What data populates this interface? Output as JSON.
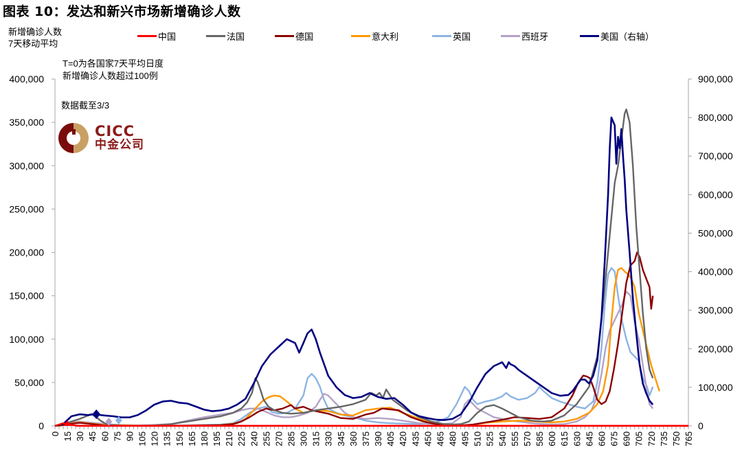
{
  "header": {
    "title": "图表 10：发达和新兴市场新增确诊人数",
    "ylabel_line1": "新增确诊人数",
    "ylabel_line2": "7天移动平均"
  },
  "annotations": {
    "note_line1": "T=0为各国家7天平均日度",
    "note_line2": "新增确诊人数超过100例",
    "cutoff": "数据截至3/3"
  },
  "logo": {
    "en": "CICC",
    "cn": "中金公司"
  },
  "chart_data": {
    "type": "line",
    "title": "图表 10：发达和新兴市场新增确诊人数",
    "ylabel": "新增确诊人数 7天移动平均",
    "xlabel": "",
    "x_range": [
      0,
      765
    ],
    "x_ticks": [
      0,
      15,
      30,
      45,
      60,
      75,
      90,
      105,
      120,
      135,
      150,
      165,
      180,
      195,
      210,
      225,
      240,
      255,
      270,
      285,
      300,
      315,
      330,
      345,
      360,
      375,
      390,
      405,
      420,
      435,
      450,
      465,
      480,
      495,
      510,
      525,
      540,
      555,
      570,
      585,
      600,
      615,
      630,
      645,
      660,
      675,
      690,
      705,
      720,
      735,
      750,
      765
    ],
    "ylim_left": [
      0,
      400000
    ],
    "ylim_right": [
      0,
      900000
    ],
    "y_ticks_left": [
      "0",
      "50,000",
      "100,000",
      "150,000",
      "200,000",
      "250,000",
      "300,000",
      "350,000",
      "400,000"
    ],
    "y_ticks_right": [
      "0",
      "100,000",
      "200,000",
      "300,000",
      "400,000",
      "500,000",
      "600,000",
      "700,000",
      "800,000",
      "900,000"
    ],
    "grid": false,
    "legend_position": "top",
    "series": [
      {
        "name": "中国",
        "color": "#ff0000",
        "axis": "left",
        "x": [
          0,
          5,
          10,
          15,
          20,
          25,
          30,
          40,
          60,
          100,
          200,
          400,
          600,
          765
        ],
        "values": [
          0,
          1500,
          3000,
          2500,
          1000,
          500,
          200,
          100,
          50,
          50,
          50,
          50,
          50,
          50
        ]
      },
      {
        "name": "法国",
        "color": "#666666",
        "axis": "left",
        "x": [
          0,
          10,
          20,
          30,
          40,
          45,
          50,
          55,
          60,
          65,
          80,
          100,
          120,
          140,
          160,
          180,
          200,
          215,
          225,
          232,
          238,
          242,
          245,
          248,
          252,
          258,
          265,
          275,
          285,
          300,
          315,
          330,
          345,
          360,
          375,
          382,
          388,
          392,
          396,
          400,
          404,
          408,
          415,
          425,
          440,
          455,
          470,
          480,
          490,
          500,
          510,
          520,
          530,
          540,
          550,
          560,
          575,
          590,
          600,
          615,
          630,
          645,
          655,
          662,
          668,
          672,
          676,
          680,
          684,
          688,
          690,
          694,
          698,
          702,
          706,
          710,
          714,
          718,
          722
        ],
        "values": [
          0,
          2000,
          5000,
          8000,
          12000,
          13000,
          10000,
          6000,
          3000,
          1000,
          300,
          200,
          500,
          2000,
          5000,
          8000,
          11000,
          15000,
          20000,
          27000,
          38000,
          55000,
          50000,
          42000,
          30000,
          22000,
          18000,
          15000,
          14000,
          15000,
          18000,
          20000,
          22000,
          25000,
          30000,
          38000,
          35000,
          38000,
          32000,
          42000,
          36000,
          30000,
          25000,
          18000,
          10000,
          5000,
          2000,
          1500,
          2000,
          5000,
          15000,
          22000,
          24000,
          20000,
          15000,
          10000,
          6000,
          5000,
          6000,
          12000,
          25000,
          45000,
          80000,
          140000,
          200000,
          240000,
          280000,
          300000,
          330000,
          360000,
          365000,
          350000,
          300000,
          230000,
          180000,
          130000,
          90000,
          65000,
          55000
        ]
      },
      {
        "name": "德国",
        "color": "#8b0000",
        "axis": "left",
        "x": [
          0,
          10,
          20,
          30,
          40,
          50,
          60,
          80,
          120,
          160,
          200,
          215,
          225,
          235,
          245,
          255,
          265,
          275,
          280,
          285,
          290,
          300,
          310,
          320,
          330,
          345,
          360,
          375,
          385,
          395,
          405,
          415,
          430,
          445,
          460,
          475,
          490,
          505,
          520,
          540,
          555,
          570,
          585,
          600,
          615,
          625,
          632,
          638,
          642,
          646,
          650,
          655,
          660,
          665,
          670,
          675,
          680,
          685,
          690,
          695,
          700,
          703,
          706,
          710,
          714,
          718,
          720,
          722
        ],
        "values": [
          0,
          1000,
          2500,
          3500,
          2500,
          1500,
          500,
          200,
          100,
          200,
          800,
          2000,
          5000,
          10000,
          16000,
          20000,
          18000,
          20000,
          22000,
          24000,
          20000,
          22000,
          18000,
          16000,
          14000,
          9000,
          8000,
          13000,
          15000,
          20000,
          19000,
          18000,
          10000,
          5000,
          2000,
          800,
          500,
          1500,
          4000,
          7000,
          10000,
          9000,
          8000,
          10000,
          20000,
          35000,
          50000,
          58000,
          57000,
          55000,
          45000,
          30000,
          25000,
          28000,
          40000,
          65000,
          95000,
          130000,
          165000,
          185000,
          190000,
          200000,
          195000,
          180000,
          170000,
          160000,
          135000,
          150000
        ]
      },
      {
        "name": "意大利",
        "color": "#ff9900",
        "axis": "left",
        "x": [
          0,
          10,
          20,
          30,
          40,
          60,
          100,
          160,
          200,
          220,
          230,
          240,
          250,
          258,
          265,
          272,
          280,
          290,
          300,
          310,
          320,
          330,
          345,
          360,
          375,
          390,
          405,
          420,
          440,
          460,
          480,
          495,
          510,
          525,
          540,
          560,
          580,
          600,
          615,
          630,
          645,
          655,
          662,
          668,
          672,
          676,
          680,
          684,
          688,
          692,
          696,
          700,
          705,
          710,
          715,
          720,
          725,
          730
        ],
        "values": [
          0,
          500,
          3000,
          4000,
          3000,
          1000,
          300,
          200,
          800,
          3000,
          8000,
          18000,
          28000,
          33000,
          35000,
          34000,
          28000,
          20000,
          15000,
          17000,
          18000,
          17000,
          13000,
          12000,
          18000,
          20000,
          21000,
          15000,
          8000,
          3000,
          1000,
          500,
          2000,
          4000,
          5000,
          6000,
          5000,
          4000,
          5000,
          8000,
          15000,
          25000,
          40000,
          70000,
          120000,
          160000,
          180000,
          182000,
          178000,
          175000,
          170000,
          160000,
          130000,
          110000,
          90000,
          70000,
          55000,
          40000
        ]
      },
      {
        "name": "英国",
        "color": "#8db4e2",
        "axis": "left",
        "x": [
          0,
          10,
          20,
          30,
          40,
          50,
          60,
          70,
          80,
          100,
          150,
          200,
          215,
          225,
          235,
          245,
          255,
          262,
          270,
          280,
          290,
          300,
          305,
          310,
          315,
          320,
          325,
          330,
          340,
          350,
          360,
          375,
          390,
          405,
          420,
          440,
          460,
          475,
          485,
          490,
          495,
          500,
          505,
          510,
          520,
          530,
          540,
          545,
          550,
          560,
          570,
          580,
          585,
          590,
          600,
          610,
          620,
          630,
          640,
          650,
          655,
          660,
          664,
          668,
          672,
          676,
          680,
          685,
          690,
          695,
          700,
          705,
          710,
          715,
          718,
          722
        ],
        "values": [
          0,
          1000,
          3000,
          4500,
          4000,
          3000,
          2000,
          1500,
          1000,
          500,
          500,
          1500,
          3000,
          8000,
          15000,
          20000,
          22000,
          16000,
          14000,
          15000,
          20000,
          35000,
          55000,
          60000,
          55000,
          45000,
          30000,
          20000,
          15000,
          12000,
          10000,
          6000,
          4000,
          3000,
          2500,
          2000,
          4000,
          10000,
          25000,
          35000,
          45000,
          40000,
          30000,
          25000,
          28000,
          30000,
          34000,
          38000,
          34000,
          30000,
          32000,
          38000,
          45000,
          40000,
          32000,
          28000,
          25000,
          22000,
          20000,
          28000,
          50000,
          90000,
          140000,
          175000,
          182000,
          178000,
          150000,
          120000,
          100000,
          85000,
          80000,
          75000,
          55000,
          45000,
          35000,
          45000
        ]
      },
      {
        "name": "西班牙",
        "color": "#b3a2c7",
        "axis": "left",
        "x": [
          0,
          10,
          20,
          30,
          40,
          50,
          60,
          70,
          80,
          100,
          140,
          160,
          180,
          200,
          215,
          225,
          235,
          245,
          255,
          265,
          275,
          285,
          295,
          305,
          315,
          320,
          325,
          330,
          340,
          350,
          360,
          375,
          390,
          405,
          420,
          440,
          460,
          480,
          490,
          495,
          500,
          505,
          510,
          520,
          530,
          540,
          550,
          560,
          575,
          590,
          600,
          615,
          630,
          640,
          648,
          655,
          660,
          665,
          670,
          675,
          680,
          685,
          690,
          695,
          700,
          705,
          710,
          715,
          718,
          722
        ],
        "values": [
          0,
          1000,
          4000,
          5000,
          4000,
          3000,
          2000,
          1000,
          500,
          300,
          2000,
          6000,
          10000,
          13000,
          15000,
          18000,
          20000,
          20000,
          16000,
          12000,
          10000,
          10000,
          12000,
          15000,
          22000,
          30000,
          37000,
          35000,
          25000,
          15000,
          10000,
          8000,
          9000,
          8000,
          6000,
          3000,
          1500,
          3000,
          10000,
          25000,
          30000,
          25000,
          20000,
          15000,
          10000,
          8000,
          6000,
          5000,
          3000,
          2000,
          1500,
          2000,
          5000,
          10000,
          18000,
          35000,
          60000,
          90000,
          110000,
          120000,
          130000,
          140000,
          155000,
          150000,
          120000,
          100000,
          70000,
          40000,
          25000,
          20000
        ]
      },
      {
        "name": "美国（右轴）",
        "color": "#000080",
        "axis": "right",
        "x": [
          0,
          10,
          20,
          30,
          40,
          45,
          50,
          55,
          60,
          70,
          80,
          90,
          100,
          110,
          120,
          130,
          140,
          150,
          160,
          170,
          180,
          190,
          200,
          210,
          220,
          230,
          240,
          250,
          260,
          270,
          280,
          290,
          295,
          300,
          305,
          310,
          315,
          320,
          325,
          330,
          340,
          350,
          360,
          370,
          380,
          390,
          400,
          410,
          420,
          430,
          440,
          450,
          460,
          470,
          480,
          490,
          500,
          510,
          520,
          530,
          540,
          545,
          548,
          550,
          555,
          560,
          570,
          580,
          590,
          600,
          610,
          620,
          625,
          630,
          635,
          640,
          645,
          650,
          655,
          660,
          664,
          668,
          670,
          672,
          674,
          676,
          678,
          680,
          682,
          684,
          686,
          688,
          690,
          694,
          698,
          702,
          706,
          710,
          714,
          718,
          722
        ],
        "values": [
          0,
          5000,
          25000,
          30000,
          28000,
          30000,
          32000,
          28000,
          27000,
          25000,
          22000,
          22000,
          28000,
          40000,
          55000,
          63000,
          65000,
          60000,
          58000,
          50000,
          42000,
          38000,
          40000,
          45000,
          55000,
          70000,
          110000,
          155000,
          185000,
          205000,
          225000,
          215000,
          190000,
          215000,
          240000,
          250000,
          225000,
          190000,
          160000,
          130000,
          100000,
          80000,
          72000,
          75000,
          85000,
          75000,
          70000,
          72000,
          55000,
          35000,
          25000,
          20000,
          16000,
          15000,
          18000,
          30000,
          60000,
          100000,
          135000,
          155000,
          165000,
          150000,
          165000,
          160000,
          155000,
          145000,
          130000,
          115000,
          100000,
          85000,
          78000,
          80000,
          90000,
          105000,
          120000,
          120000,
          110000,
          130000,
          170000,
          280000,
          430000,
          600000,
          720000,
          800000,
          790000,
          780000,
          680000,
          750000,
          720000,
          770000,
          700000,
          640000,
          560000,
          450000,
          330000,
          240000,
          160000,
          110000,
          85000,
          65000,
          55000
        ]
      }
    ]
  },
  "legend": [
    {
      "label": "中国",
      "color": "#ff0000"
    },
    {
      "label": "法国",
      "color": "#666666"
    },
    {
      "label": "德国",
      "color": "#8b0000"
    },
    {
      "label": "意大利",
      "color": "#ff9900"
    },
    {
      "label": "英国",
      "color": "#8db4e2"
    },
    {
      "label": "西班牙",
      "color": "#b3a2c7"
    },
    {
      "label": "美国（右轴）",
      "color": "#000080"
    }
  ]
}
